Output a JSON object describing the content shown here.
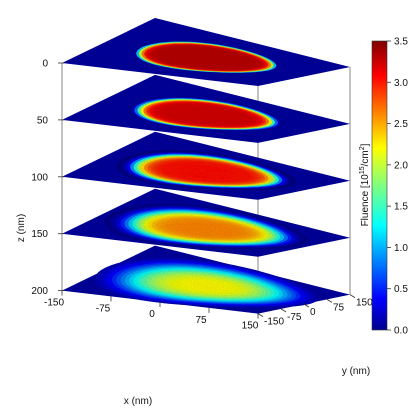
{
  "chart_data": {
    "type": "heatmap",
    "title": "",
    "z_axis": {
      "label": "z (nm)",
      "ticks": [
        "0",
        "50",
        "100",
        "150",
        "200"
      ],
      "range": [
        0,
        200
      ]
    },
    "x_axis": {
      "label": "x (nm)",
      "ticks": [
        "-150",
        "-75",
        "0",
        "75",
        "150"
      ],
      "range": [
        -150,
        150
      ]
    },
    "y_axis": {
      "label": "y (nm)",
      "ticks": [
        "-150",
        "-75",
        "0",
        "75",
        "150"
      ],
      "range": [
        -150,
        150
      ]
    },
    "colorbar": {
      "label_prefix": "Fluence [10",
      "label_exp1": "15",
      "label_mid": "/cm",
      "label_exp2": "2",
      "label_suffix": "]",
      "ticks": [
        "0.0",
        "0.5",
        "1.0",
        "1.5",
        "2.0",
        "2.5",
        "3.0",
        "3.5"
      ],
      "range": [
        0,
        3.5
      ],
      "colormap": "jet"
    },
    "slices": [
      {
        "z": 0,
        "beam_radius_nm": 95,
        "peak_fluence": 3.3,
        "edge_sharpness": 0.95
      },
      {
        "z": 50,
        "beam_radius_nm": 95,
        "peak_fluence": 3.2,
        "edge_sharpness": 0.7
      },
      {
        "z": 100,
        "beam_radius_nm": 100,
        "peak_fluence": 3.0,
        "edge_sharpness": 0.45
      },
      {
        "z": 150,
        "beam_radius_nm": 105,
        "peak_fluence": 2.6,
        "edge_sharpness": 0.25
      },
      {
        "z": 200,
        "beam_radius_nm": 110,
        "peak_fluence": 2.2,
        "edge_sharpness": 0.1
      }
    ]
  }
}
